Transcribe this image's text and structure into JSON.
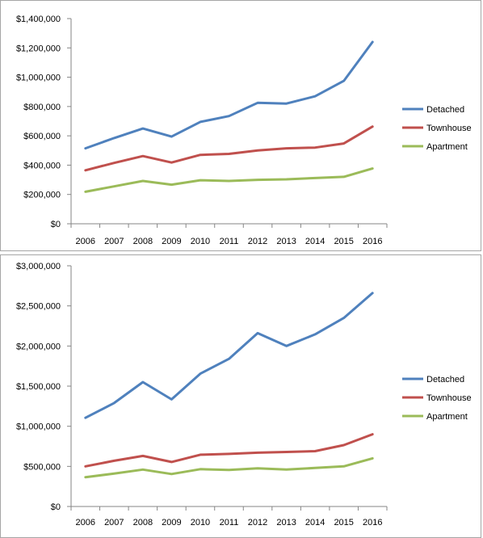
{
  "colors": {
    "detached": "#4f81bd",
    "townhouse": "#c0504d",
    "apartment": "#9bbb59",
    "axis": "#868686"
  },
  "chart_data": [
    {
      "type": "line",
      "title": "",
      "xlabel": "",
      "ylabel": "",
      "categories": [
        "2006",
        "2007",
        "2008",
        "2009",
        "2010",
        "2011",
        "2012",
        "2013",
        "2014",
        "2015",
        "2016"
      ],
      "ylim": [
        0,
        1400000
      ],
      "yticks": [
        0,
        200000,
        400000,
        600000,
        800000,
        1000000,
        1200000,
        1400000
      ],
      "ytick_labels": [
        "$0",
        "$200,000",
        "$400,000",
        "$600,000",
        "$800,000",
        "$1,000,000",
        "$1,200,000",
        "$1,400,000"
      ],
      "grid": false,
      "legend_position": "right",
      "series": [
        {
          "name": "Detached",
          "color": "#4f81bd",
          "values": [
            515000,
            585000,
            650000,
            595000,
            695000,
            735000,
            825000,
            820000,
            870000,
            975000,
            1240000
          ]
        },
        {
          "name": "Townhouse",
          "color": "#c0504d",
          "values": [
            365000,
            415000,
            462000,
            418000,
            470000,
            477000,
            500000,
            515000,
            520000,
            548000,
            663000
          ]
        },
        {
          "name": "Apartment",
          "color": "#9bbb59",
          "values": [
            218000,
            255000,
            292000,
            267000,
            297000,
            292000,
            300000,
            303000,
            312000,
            320000,
            377000
          ]
        }
      ]
    },
    {
      "type": "line",
      "title": "",
      "xlabel": "",
      "ylabel": "",
      "categories": [
        "2006",
        "2007",
        "2008",
        "2009",
        "2010",
        "2011",
        "2012",
        "2013",
        "2014",
        "2015",
        "2016"
      ],
      "ylim": [
        0,
        3000000
      ],
      "yticks": [
        0,
        500000,
        1000000,
        1500000,
        2000000,
        2500000,
        3000000
      ],
      "ytick_labels": [
        "$0",
        "$500,000",
        "$1,000,000",
        "$1,500,000",
        "$2,000,000",
        "$2,500,000",
        "$3,000,000"
      ],
      "grid": false,
      "legend_position": "right",
      "series": [
        {
          "name": "Detached",
          "color": "#4f81bd",
          "values": [
            1105000,
            1290000,
            1550000,
            1335000,
            1655000,
            1840000,
            2160000,
            2000000,
            2145000,
            2350000,
            2660000
          ]
        },
        {
          "name": "Townhouse",
          "color": "#c0504d",
          "values": [
            500000,
            570000,
            630000,
            555000,
            645000,
            655000,
            670000,
            680000,
            690000,
            765000,
            900000
          ]
        },
        {
          "name": "Apartment",
          "color": "#9bbb59",
          "values": [
            365000,
            410000,
            460000,
            405000,
            465000,
            455000,
            475000,
            460000,
            480000,
            500000,
            600000
          ]
        }
      ]
    }
  ]
}
